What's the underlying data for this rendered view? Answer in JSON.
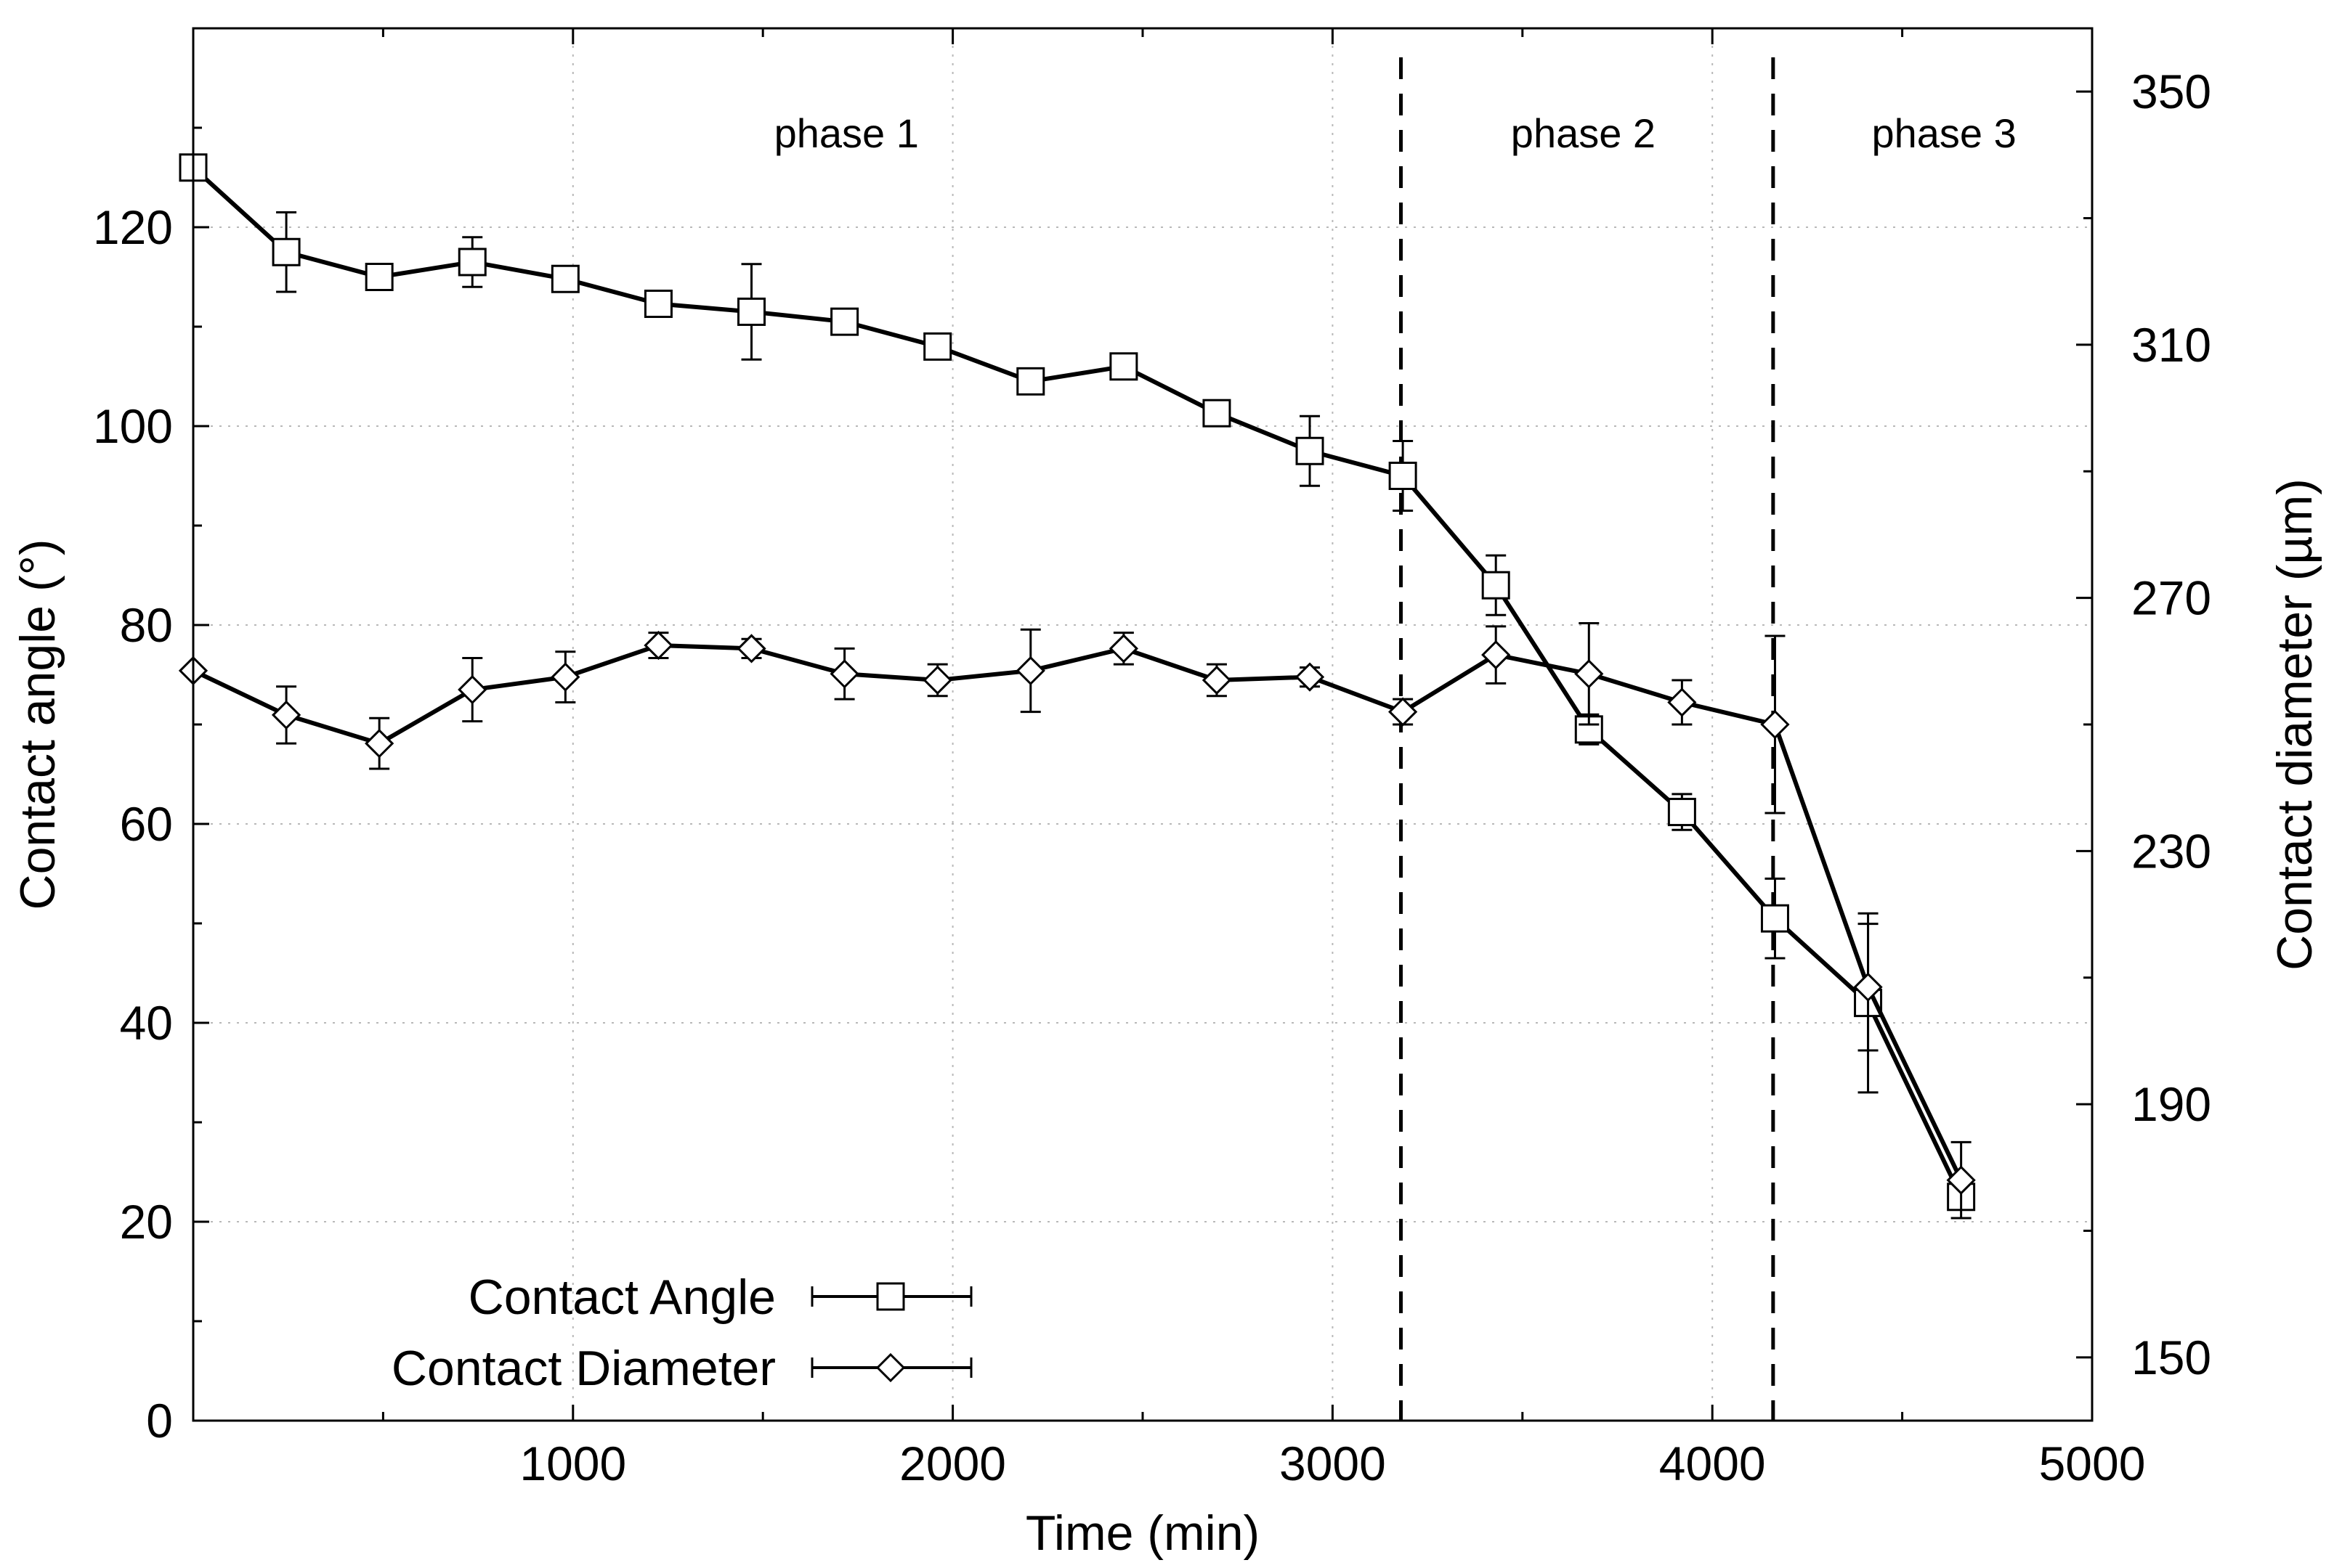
{
  "chart_data": {
    "type": "line",
    "xlabel": "Time (min)",
    "ylabel": "Contact angle (°)",
    "y2label": "Contact diameter (µm)",
    "xlim": [
      0,
      5000
    ],
    "ylim": [
      0,
      140
    ],
    "y2lim": [
      140,
      360
    ],
    "grid": true,
    "x_ticks": [
      1000,
      2000,
      3000,
      4000,
      5000
    ],
    "y_ticks": [
      0,
      20,
      40,
      60,
      80,
      100,
      120
    ],
    "y2_ticks": [
      150,
      190,
      230,
      270,
      310,
      350
    ],
    "vlines": [
      3180,
      4160
    ],
    "phases": [
      {
        "label": "phase 1",
        "x": 1720
      },
      {
        "label": "phase 2",
        "x": 3660
      },
      {
        "label": "phase 3",
        "x": 4610
      }
    ],
    "legend_position": "bottom-left",
    "series": [
      {
        "name": "Contact Angle",
        "axis": "left",
        "marker": "square",
        "x": [
          0,
          245,
          490,
          735,
          980,
          1225,
          1470,
          1715,
          1960,
          2205,
          2450,
          2695,
          2940,
          3185,
          3430,
          3675,
          3920,
          4165,
          4410,
          4655
        ],
        "values": [
          126,
          117.5,
          115,
          116.5,
          114.8,
          112.3,
          111.5,
          110.5,
          108,
          104.5,
          106,
          101.3,
          97.5,
          95,
          84,
          69.5,
          61.2,
          50.5,
          42,
          22.5
        ],
        "err": [
          0,
          4,
          1,
          2.5,
          1,
          1,
          4.8,
          1,
          1.2,
          1,
          1.2,
          1,
          3.5,
          3.5,
          3,
          1.5,
          1.8,
          4,
          9,
          1
        ]
      },
      {
        "name": "Contact Diameter",
        "axis": "right",
        "marker": "diamond",
        "x": [
          0,
          245,
          490,
          735,
          980,
          1225,
          1470,
          1715,
          1960,
          2205,
          2450,
          2695,
          2940,
          3185,
          3430,
          3675,
          3920,
          4165,
          4410,
          4655
        ],
        "values": [
          258.5,
          251.5,
          247,
          255.5,
          257.5,
          262.5,
          262,
          258,
          257,
          258.5,
          262,
          257,
          257.5,
          252,
          261,
          258,
          253.5,
          250,
          208.5,
          178
        ],
        "err": [
          0,
          4.5,
          4,
          5,
          4,
          2,
          1.5,
          4,
          2.5,
          6.5,
          2.5,
          2.5,
          1.5,
          2,
          4.5,
          8,
          3.5,
          14,
          10,
          6
        ]
      }
    ]
  }
}
